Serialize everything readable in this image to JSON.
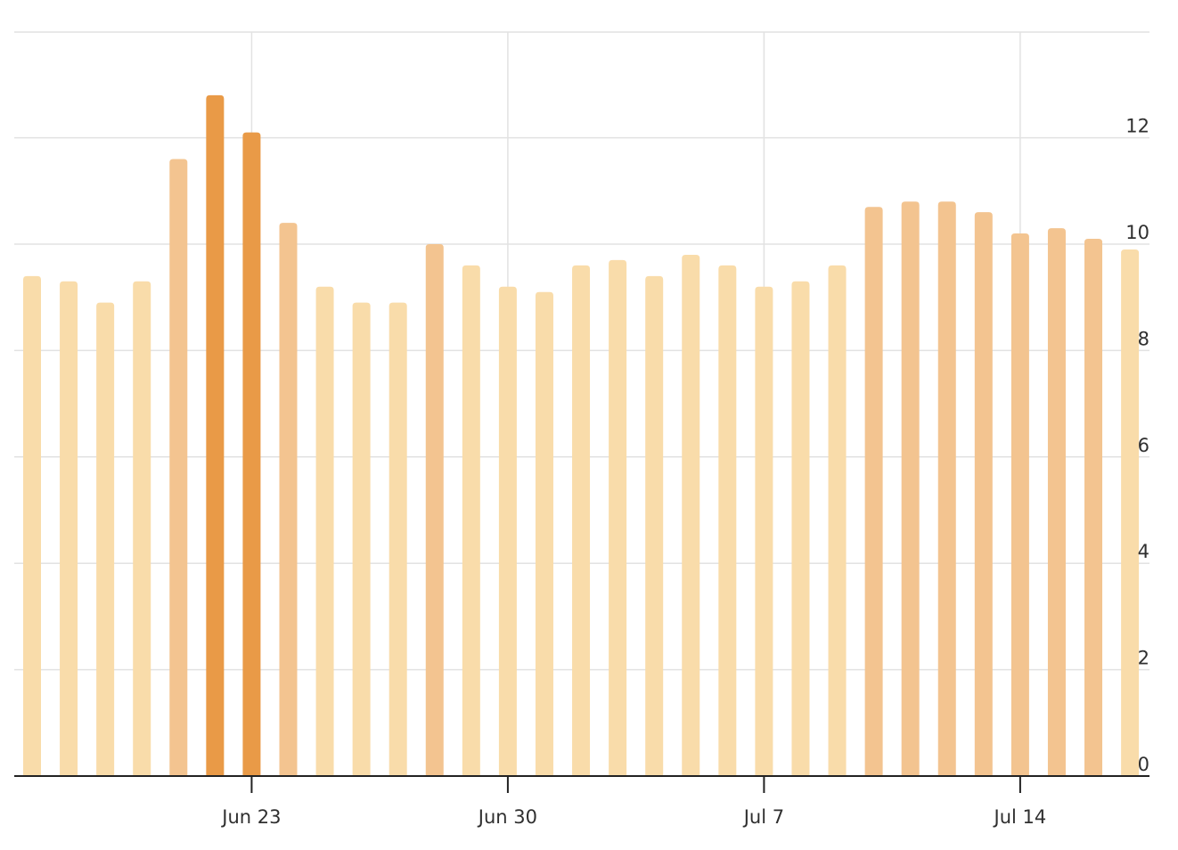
{
  "chart_data": {
    "type": "bar",
    "title": "",
    "xlabel": "",
    "ylabel": "",
    "ylim": [
      0,
      14
    ],
    "y_ticks": [
      "0",
      "2",
      "4",
      "6",
      "8",
      "10",
      "12"
    ],
    "y_axis_position": "right",
    "x_ticks": [
      {
        "label": "Jun 23",
        "index": 6
      },
      {
        "label": "Jun 30",
        "index": 13
      },
      {
        "label": "Jul 7",
        "index": 20
      },
      {
        "label": "Jul 14",
        "index": 27
      }
    ],
    "grid": true,
    "colors": {
      "low": "#f9dcaa",
      "mid": "#f3c490",
      "high": "#e99a47",
      "grid": "#e2e2e2",
      "axis": "#222222"
    },
    "values": [
      9.4,
      9.3,
      8.9,
      9.3,
      11.6,
      12.8,
      12.1,
      10.4,
      9.2,
      8.9,
      8.9,
      10.0,
      9.6,
      9.2,
      9.1,
      9.6,
      9.7,
      9.4,
      9.8,
      9.6,
      9.2,
      9.3,
      9.6,
      10.7,
      10.8,
      10.8,
      10.6,
      10.2,
      10.3,
      10.1,
      9.9
    ],
    "intensity": [
      "low",
      "low",
      "low",
      "low",
      "mid",
      "high",
      "high",
      "mid",
      "low",
      "low",
      "low",
      "mid",
      "low",
      "low",
      "low",
      "low",
      "low",
      "low",
      "low",
      "low",
      "low",
      "low",
      "low",
      "mid",
      "mid",
      "mid",
      "mid",
      "mid",
      "mid",
      "mid",
      "low"
    ]
  }
}
